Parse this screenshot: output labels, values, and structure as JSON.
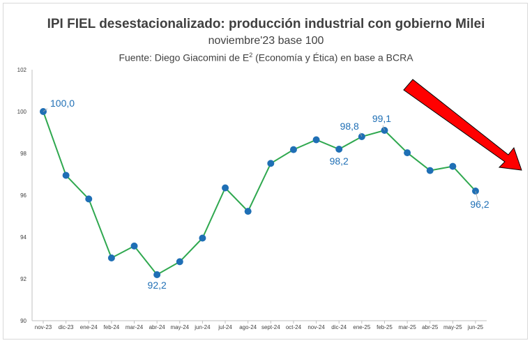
{
  "chart_data": {
    "type": "line",
    "title": "IPI FIEL desestacionalizado: producción industrial con gobierno Milei",
    "subtitle": "noviembre'23 base 100",
    "source_prefix": "Fuente: Diego Giacomini de E",
    "source_sup": "2",
    "source_suffix": " (Economía y Ética) en base a BCRA",
    "categories": [
      "nov-23",
      "dic-23",
      "ene-24",
      "feb-24",
      "mar-24",
      "abr-24",
      "may-24",
      "jun-24",
      "jul-24",
      "ago-24",
      "sept-24",
      "oct-24",
      "nov-24",
      "dic-24",
      "ene-25",
      "feb-25",
      "mar-25",
      "abr-25",
      "may-25",
      "jun-25"
    ],
    "values": [
      100.0,
      96.95,
      95.82,
      93.0,
      93.57,
      92.2,
      92.82,
      93.95,
      96.35,
      95.23,
      97.52,
      98.18,
      98.65,
      98.2,
      98.8,
      99.1,
      98.03,
      97.18,
      97.38,
      96.2
    ],
    "ylim": [
      90,
      102
    ],
    "yticks": [
      90,
      92,
      94,
      96,
      98,
      100,
      102
    ],
    "line_color": "#2fa84f",
    "marker_color": "#1f6fb5",
    "label_color": "#1f6fb5",
    "arrow_color": "#ff0000",
    "data_labels": [
      {
        "index": 0,
        "text": "100,0"
      },
      {
        "index": 5,
        "text": "92,2"
      },
      {
        "index": 13,
        "text": "98,2"
      },
      {
        "index": 14,
        "text": "98,8"
      },
      {
        "index": 15,
        "text": "99,1"
      },
      {
        "index": 19,
        "text": "96,2"
      }
    ],
    "grid": false
  }
}
